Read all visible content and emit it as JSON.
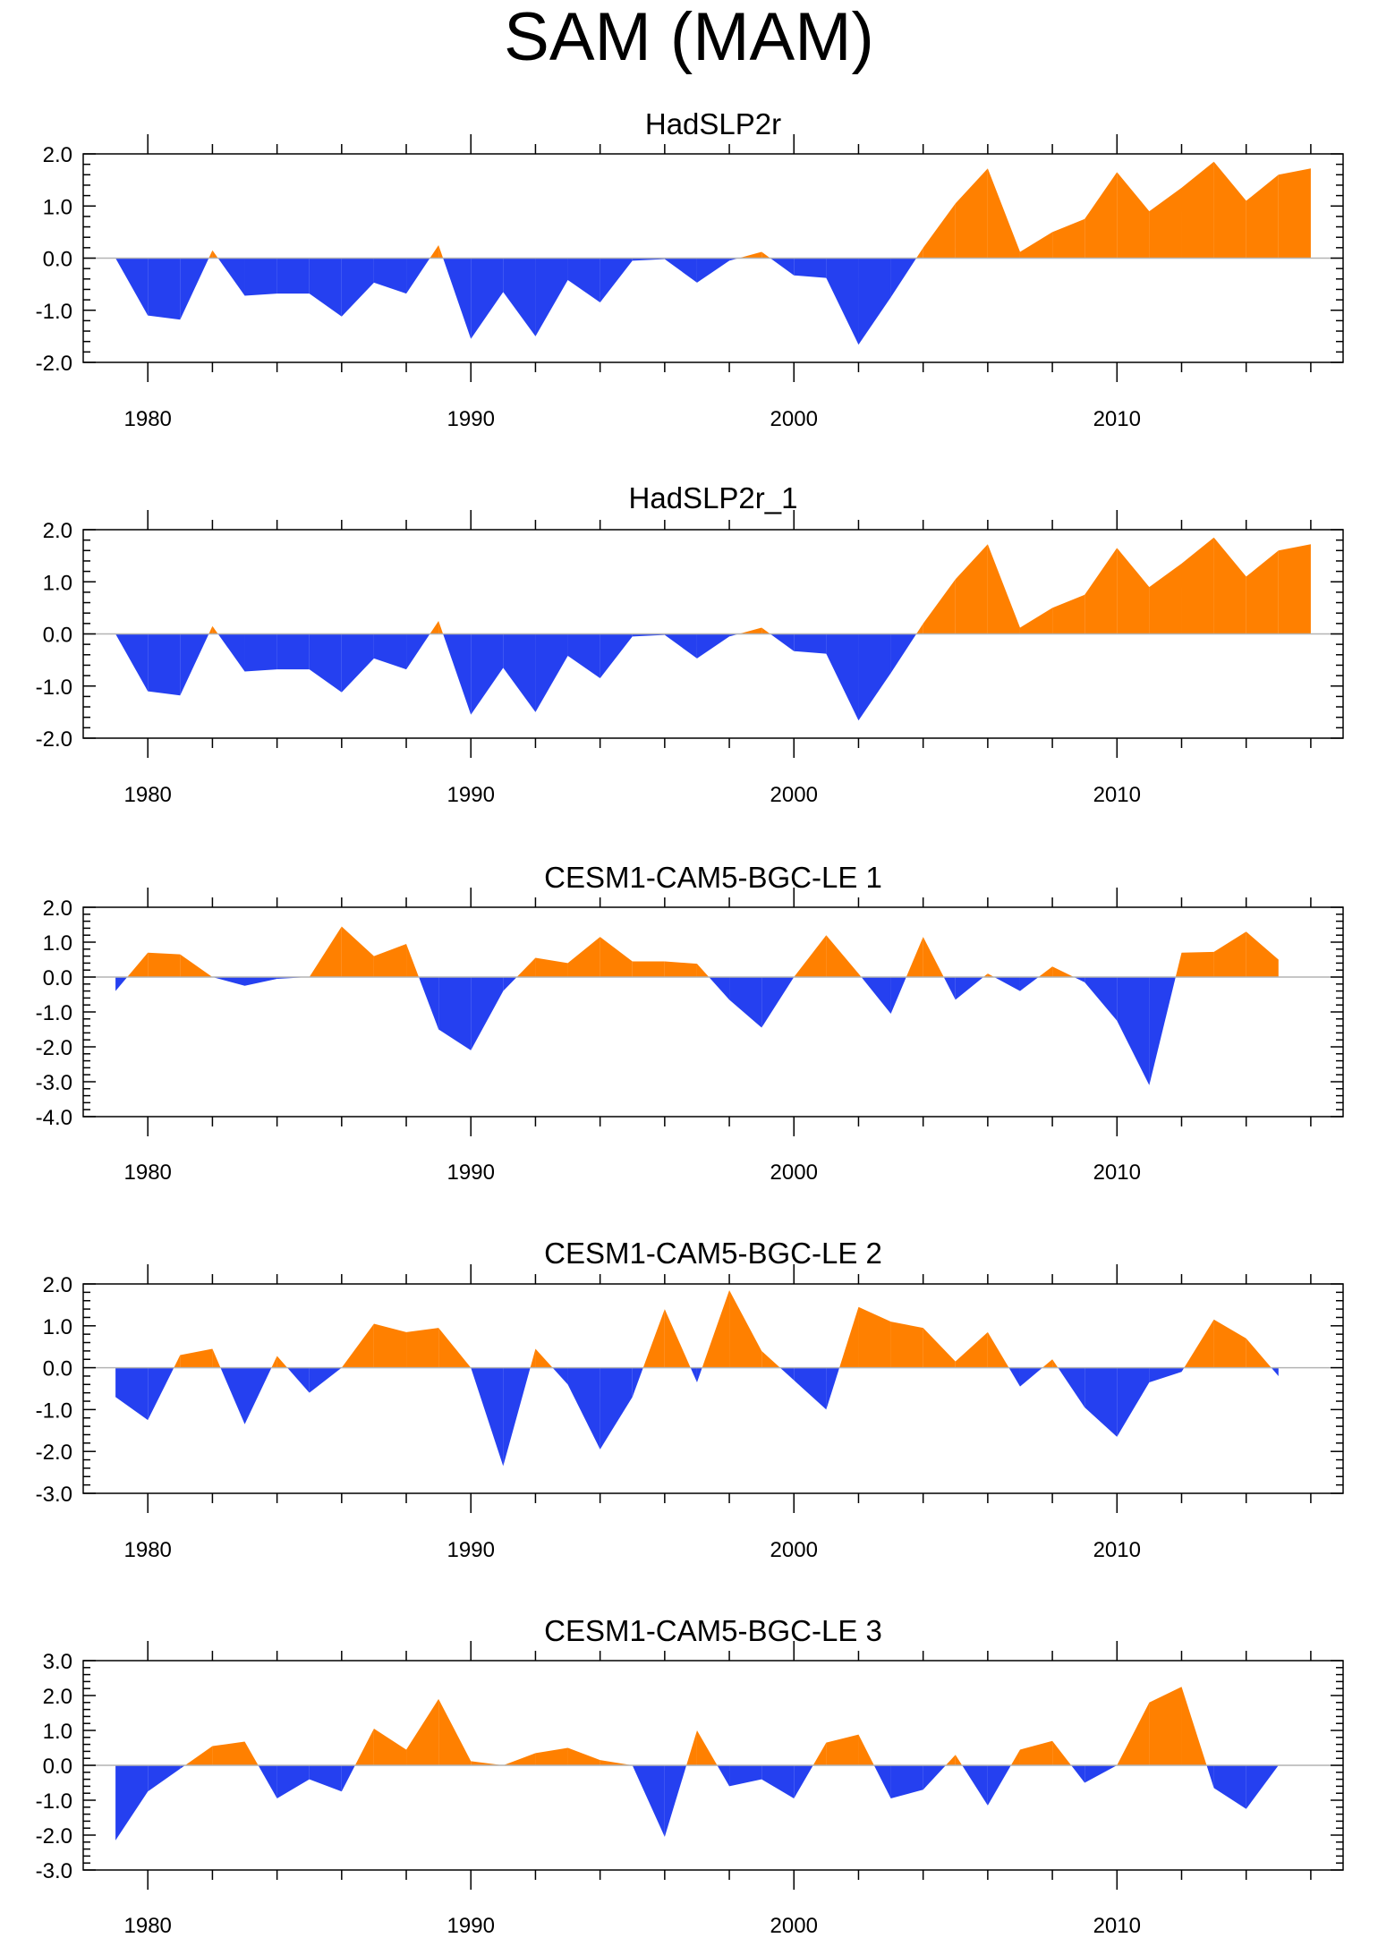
{
  "page_title": "SAM (MAM)",
  "colors": {
    "positive": "#FF8000",
    "negative": "#2540F0",
    "axis": "#000000",
    "zero_line": "#B4B4B4"
  },
  "chart_data": [
    {
      "type": "area",
      "title": "HadSLP2r",
      "xlabel": "",
      "ylabel": "",
      "x_start": 1979,
      "xlim": [
        1978,
        2017
      ],
      "ylim": [
        -2,
        2
      ],
      "yticks": [
        "2.0",
        "1.0",
        "0.0",
        "-1.0",
        "-2.0"
      ],
      "xticks": [
        "1980",
        "1990",
        "2000",
        "2010"
      ],
      "values": [
        0.0,
        -1.1,
        -1.18,
        0.15,
        -0.72,
        -0.68,
        -0.68,
        -1.12,
        -0.47,
        -0.68,
        0.25,
        -1.55,
        -0.65,
        -1.5,
        -0.42,
        -0.85,
        -0.05,
        -0.02,
        -0.47,
        -0.05,
        0.12,
        -0.33,
        -0.38,
        -1.66,
        -0.75,
        0.2,
        1.05,
        1.72,
        0.12,
        0.5,
        0.75,
        1.65,
        0.9,
        1.35,
        1.85,
        1.1,
        1.6,
        1.72
      ]
    },
    {
      "type": "area",
      "title": "HadSLP2r_1",
      "xlabel": "",
      "ylabel": "",
      "x_start": 1979,
      "xlim": [
        1978,
        2017
      ],
      "ylim": [
        -2,
        2
      ],
      "yticks": [
        "2.0",
        "1.0",
        "0.0",
        "-1.0",
        "-2.0"
      ],
      "xticks": [
        "1980",
        "1990",
        "2000",
        "2010"
      ],
      "values": [
        0.0,
        -1.1,
        -1.18,
        0.15,
        -0.72,
        -0.68,
        -0.68,
        -1.12,
        -0.47,
        -0.68,
        0.25,
        -1.55,
        -0.65,
        -1.5,
        -0.42,
        -0.85,
        -0.05,
        -0.02,
        -0.47,
        -0.05,
        0.12,
        -0.33,
        -0.38,
        -1.66,
        -0.75,
        0.2,
        1.05,
        1.72,
        0.12,
        0.5,
        0.75,
        1.65,
        0.9,
        1.35,
        1.85,
        1.1,
        1.6,
        1.72
      ]
    },
    {
      "type": "area",
      "title": "CESM1-CAM5-BGC-LE 1",
      "xlabel": "",
      "ylabel": "",
      "x_start": 1979,
      "xlim": [
        1978,
        2017
      ],
      "ylim": [
        -4,
        2
      ],
      "yticks": [
        "2.0",
        "1.0",
        "0.0",
        "-1.0",
        "-2.0",
        "-3.0",
        "-4.0"
      ],
      "xticks": [
        "1980",
        "1990",
        "2000",
        "2010"
      ],
      "values": [
        -0.4,
        0.7,
        0.65,
        0.0,
        -0.25,
        -0.05,
        0.0,
        1.45,
        0.6,
        0.95,
        -1.5,
        -2.1,
        -0.4,
        0.55,
        0.4,
        1.15,
        0.45,
        0.45,
        0.38,
        -0.65,
        -1.45,
        0.0,
        1.2,
        0.1,
        -1.05,
        1.15,
        -0.65,
        0.1,
        -0.4,
        0.3,
        -0.15,
        -1.25,
        -3.1,
        0.7,
        0.72,
        1.3,
        0.5
      ]
    },
    {
      "type": "area",
      "title": "CESM1-CAM5-BGC-LE 2",
      "xlabel": "",
      "ylabel": "",
      "x_start": 1979,
      "xlim": [
        1978,
        2017
      ],
      "ylim": [
        -3,
        2
      ],
      "yticks": [
        "2.0",
        "1.0",
        "0.0",
        "-1.0",
        "-2.0",
        "-3.0"
      ],
      "xticks": [
        "1980",
        "1990",
        "2000",
        "2010"
      ],
      "values": [
        -0.7,
        -1.25,
        0.3,
        0.45,
        -1.35,
        0.28,
        -0.6,
        0.0,
        1.05,
        0.85,
        0.95,
        0.0,
        -2.35,
        0.45,
        -0.4,
        -1.95,
        -0.7,
        1.4,
        -0.35,
        1.85,
        0.4,
        -0.3,
        -1.0,
        1.45,
        1.1,
        0.95,
        0.15,
        0.85,
        -0.45,
        0.2,
        -0.95,
        -1.65,
        -0.35,
        -0.1,
        1.15,
        0.7,
        -0.2
      ]
    },
    {
      "type": "area",
      "title": "CESM1-CAM5-BGC-LE 3",
      "xlabel": "",
      "ylabel": "",
      "x_start": 1979,
      "xlim": [
        1978,
        2017
      ],
      "ylim": [
        -3,
        3
      ],
      "yticks": [
        "3.0",
        "2.0",
        "1.0",
        "0.0",
        "-1.0",
        "-2.0",
        "-3.0"
      ],
      "xticks": [
        "1980",
        "1990",
        "2000",
        "2010"
      ],
      "values": [
        -2.15,
        -0.75,
        -0.1,
        0.55,
        0.68,
        -0.95,
        -0.4,
        -0.75,
        1.05,
        0.45,
        1.9,
        0.12,
        0.0,
        0.35,
        0.5,
        0.15,
        0.0,
        -2.05,
        1.0,
        -0.6,
        -0.4,
        -0.95,
        0.65,
        0.88,
        -0.95,
        -0.7,
        0.3,
        -1.15,
        0.45,
        0.7,
        -0.5,
        0.0,
        1.8,
        2.25,
        -0.65,
        -1.25,
        0.0
      ]
    }
  ]
}
